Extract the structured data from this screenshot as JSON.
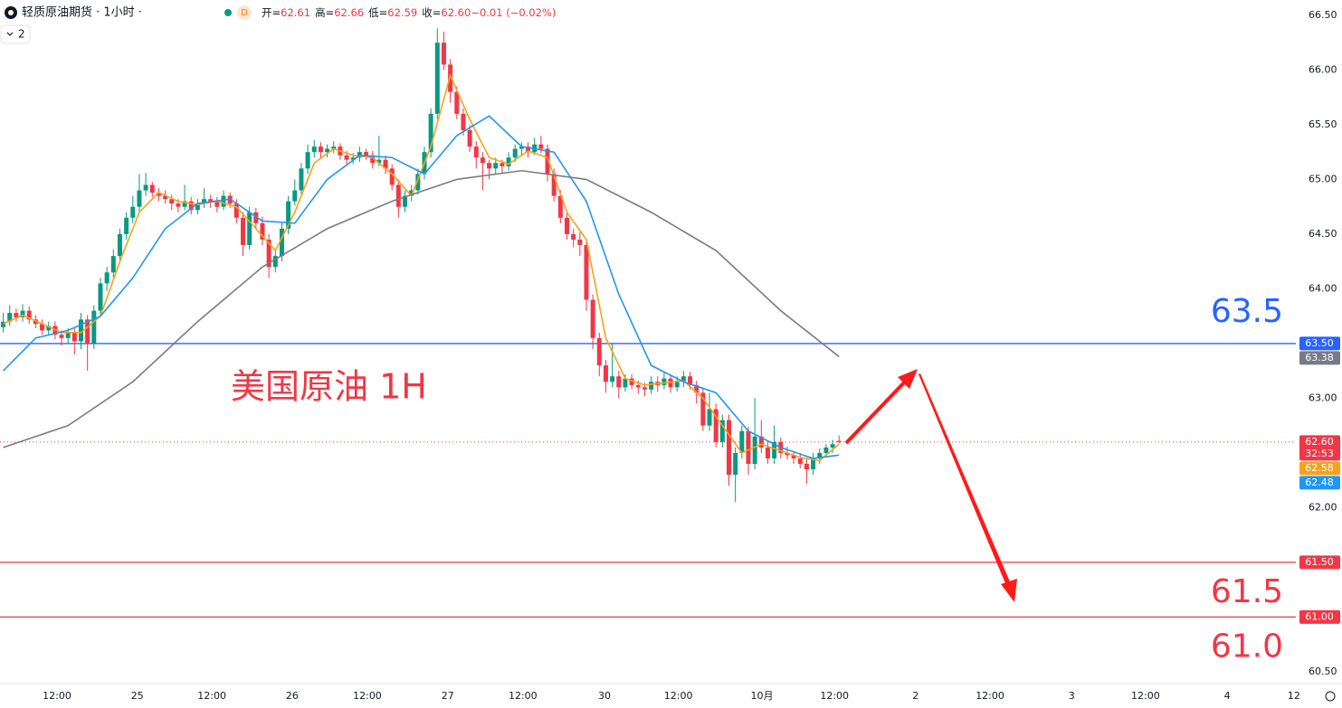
{
  "chart_data": {
    "type": "candlestick",
    "legend": {
      "name": "轻质原油期货 · 1小时 ·",
      "interval": "D",
      "fields": [
        [
          "开=",
          "62.61"
        ],
        [
          "高=",
          "62.66"
        ],
        [
          "低=",
          "62.59"
        ],
        [
          "收=",
          "62.60"
        ],
        [
          "",
          "−0.01 (−0.02%)"
        ]
      ],
      "indicator_count": 2
    },
    "title": "美国原油 1H",
    "up_color": "#089981",
    "down_color": "#f23645",
    "xlim": [
      -0.5,
      199.5
    ],
    "xticks": [
      {
        "value": 8.3,
        "label": "12:00"
      },
      {
        "value": 20.7,
        "label": "25"
      },
      {
        "value": 32.2,
        "label": "12:00"
      },
      {
        "value": 44.6,
        "label": "26"
      },
      {
        "value": 56.2,
        "label": "12:00"
      },
      {
        "value": 68.6,
        "label": "27"
      },
      {
        "value": 80.2,
        "label": "12:00"
      },
      {
        "value": 92.8,
        "label": "30"
      },
      {
        "value": 104.2,
        "label": "12:00"
      },
      {
        "value": 117.1,
        "label": "10月"
      },
      {
        "value": 128.3,
        "label": "12:00"
      },
      {
        "value": 140.8,
        "label": "2"
      },
      {
        "value": 152.3,
        "label": "12:00"
      },
      {
        "value": 164.9,
        "label": "3"
      },
      {
        "value": 176.3,
        "label": "12:00"
      },
      {
        "value": 188.9,
        "label": "4"
      },
      {
        "value": 199.2,
        "label": "12"
      }
    ],
    "ylim": [
      60.4,
      66.64
    ],
    "yticks": [
      {
        "value": 66.5,
        "label": "66.50"
      },
      {
        "value": 66,
        "label": "66.00"
      },
      {
        "value": 65.5,
        "label": "65.50"
      },
      {
        "value": 65,
        "label": "65.00"
      },
      {
        "value": 64.5,
        "label": "64.50"
      },
      {
        "value": 64,
        "label": "64.00"
      },
      {
        "value": 63,
        "label": "63.00"
      },
      {
        "value": 62,
        "label": "62.00"
      },
      {
        "value": 60.5,
        "label": "60.50"
      }
    ],
    "grid": false,
    "candles": [
      [
        63.65,
        63.78,
        63.6,
        63.7
      ],
      [
        63.7,
        63.85,
        63.66,
        63.78
      ],
      [
        63.78,
        63.82,
        63.7,
        63.74
      ],
      [
        63.74,
        63.86,
        63.7,
        63.8
      ],
      [
        63.8,
        63.84,
        63.68,
        63.72
      ],
      [
        63.72,
        63.76,
        63.64,
        63.68
      ],
      [
        63.68,
        63.72,
        63.58,
        63.62
      ],
      [
        63.62,
        63.7,
        63.58,
        63.66
      ],
      [
        63.66,
        63.7,
        63.54,
        63.58
      ],
      [
        63.58,
        63.62,
        63.48,
        63.55
      ],
      [
        63.55,
        63.64,
        63.5,
        63.6
      ],
      [
        63.6,
        63.64,
        63.4,
        63.52
      ],
      [
        63.52,
        63.78,
        63.45,
        63.72
      ],
      [
        63.72,
        63.76,
        63.25,
        63.5
      ],
      [
        63.5,
        63.85,
        63.45,
        63.8
      ],
      [
        63.8,
        64.1,
        63.76,
        64.05
      ],
      [
        64.05,
        64.2,
        63.98,
        64.15
      ],
      [
        64.15,
        64.36,
        64.1,
        64.3
      ],
      [
        64.3,
        64.55,
        64.25,
        64.5
      ],
      [
        64.5,
        64.7,
        64.45,
        64.65
      ],
      [
        64.65,
        64.85,
        64.6,
        64.75
      ],
      [
        64.75,
        65.05,
        64.7,
        64.9
      ],
      [
        64.9,
        65.06,
        64.85,
        64.95
      ],
      [
        64.95,
        64.98,
        64.84,
        64.88
      ],
      [
        64.88,
        64.92,
        64.8,
        64.85
      ],
      [
        64.85,
        64.9,
        64.78,
        64.82
      ],
      [
        64.82,
        64.86,
        64.72,
        64.78
      ],
      [
        64.78,
        64.82,
        64.7,
        64.75
      ],
      [
        64.75,
        64.95,
        64.72,
        64.8
      ],
      [
        64.8,
        64.84,
        64.68,
        64.72
      ],
      [
        64.72,
        64.82,
        64.68,
        64.78
      ],
      [
        64.78,
        64.92,
        64.74,
        64.82
      ],
      [
        64.82,
        64.86,
        64.74,
        64.8
      ],
      [
        64.8,
        64.84,
        64.7,
        64.75
      ],
      [
        64.75,
        64.9,
        64.72,
        64.85
      ],
      [
        64.85,
        64.88,
        64.74,
        64.78
      ],
      [
        64.78,
        64.82,
        64.6,
        64.65
      ],
      [
        64.65,
        64.7,
        64.3,
        64.4
      ],
      [
        64.4,
        64.75,
        64.36,
        64.7
      ],
      [
        64.7,
        64.74,
        64.55,
        64.6
      ],
      [
        64.6,
        64.66,
        64.4,
        64.45
      ],
      [
        64.45,
        64.5,
        64.1,
        64.2
      ],
      [
        64.2,
        64.35,
        64.15,
        64.3
      ],
      [
        64.3,
        64.6,
        64.25,
        64.55
      ],
      [
        64.55,
        64.85,
        64.5,
        64.8
      ],
      [
        64.8,
        65.0,
        64.76,
        64.9
      ],
      [
        64.9,
        65.15,
        64.86,
        65.1
      ],
      [
        65.1,
        65.32,
        65.05,
        65.25
      ],
      [
        65.25,
        65.36,
        65.2,
        65.3
      ],
      [
        65.3,
        65.34,
        65.2,
        65.25
      ],
      [
        65.25,
        65.32,
        65.2,
        65.28
      ],
      [
        65.28,
        65.35,
        65.24,
        65.3
      ],
      [
        65.3,
        65.33,
        65.18,
        65.22
      ],
      [
        65.22,
        65.26,
        65.14,
        65.18
      ],
      [
        65.18,
        65.24,
        65.14,
        65.2
      ],
      [
        65.2,
        65.3,
        65.16,
        65.25
      ],
      [
        65.25,
        65.28,
        65.18,
        65.22
      ],
      [
        65.22,
        65.26,
        65.1,
        65.15
      ],
      [
        65.15,
        65.4,
        65.12,
        65.18
      ],
      [
        65.18,
        65.22,
        65.05,
        65.1
      ],
      [
        65.1,
        65.14,
        64.9,
        64.95
      ],
      [
        64.95,
        65.0,
        64.65,
        64.75
      ],
      [
        64.75,
        64.9,
        64.7,
        64.85
      ],
      [
        64.85,
        64.95,
        64.8,
        64.9
      ],
      [
        64.9,
        65.1,
        64.86,
        65.05
      ],
      [
        65.05,
        65.3,
        65.0,
        65.25
      ],
      [
        65.25,
        65.65,
        65.2,
        65.6
      ],
      [
        65.6,
        66.38,
        65.55,
        66.25
      ],
      [
        66.25,
        66.35,
        66.0,
        66.05
      ],
      [
        66.05,
        66.1,
        65.7,
        65.8
      ],
      [
        65.8,
        65.85,
        65.55,
        65.6
      ],
      [
        65.6,
        65.65,
        65.4,
        65.45
      ],
      [
        65.45,
        65.5,
        65.25,
        65.3
      ],
      [
        65.3,
        65.35,
        65.1,
        65.2
      ],
      [
        65.2,
        65.25,
        64.9,
        65.15
      ],
      [
        65.15,
        65.18,
        65.0,
        65.1
      ],
      [
        65.1,
        65.2,
        65.05,
        65.15
      ],
      [
        65.15,
        65.18,
        65.05,
        65.12
      ],
      [
        65.12,
        65.25,
        65.08,
        65.2
      ],
      [
        65.2,
        65.32,
        65.16,
        65.28
      ],
      [
        65.28,
        65.34,
        65.22,
        65.3
      ],
      [
        65.3,
        65.34,
        65.2,
        65.25
      ],
      [
        65.25,
        65.38,
        65.22,
        65.32
      ],
      [
        65.32,
        65.4,
        65.24,
        65.28
      ],
      [
        65.28,
        65.32,
        64.98,
        65.05
      ],
      [
        65.05,
        65.1,
        64.8,
        64.85
      ],
      [
        64.85,
        64.9,
        64.6,
        64.65
      ],
      [
        64.65,
        64.7,
        64.45,
        64.5
      ],
      [
        64.5,
        64.55,
        64.38,
        64.45
      ],
      [
        64.45,
        64.52,
        64.3,
        64.4
      ],
      [
        64.4,
        64.45,
        63.8,
        63.9
      ],
      [
        63.9,
        63.95,
        63.45,
        63.55
      ],
      [
        63.55,
        63.6,
        63.2,
        63.3
      ],
      [
        63.3,
        63.35,
        63.05,
        63.15
      ],
      [
        63.15,
        63.5,
        63.1,
        63.2
      ],
      [
        63.2,
        63.25,
        63.0,
        63.1
      ],
      [
        63.1,
        63.22,
        63.06,
        63.18
      ],
      [
        63.18,
        63.22,
        63.08,
        63.12
      ],
      [
        63.12,
        63.16,
        63.04,
        63.1
      ],
      [
        63.1,
        63.14,
        63.02,
        63.08
      ],
      [
        63.08,
        63.2,
        63.04,
        63.15
      ],
      [
        63.15,
        63.2,
        63.06,
        63.12
      ],
      [
        63.12,
        63.24,
        63.08,
        63.18
      ],
      [
        63.18,
        63.22,
        63.05,
        63.1
      ],
      [
        63.1,
        63.2,
        63.06,
        63.15
      ],
      [
        63.15,
        63.25,
        63.1,
        63.2
      ],
      [
        63.2,
        63.24,
        63.08,
        63.12
      ],
      [
        63.12,
        63.16,
        62.95,
        63.05
      ],
      [
        63.05,
        63.1,
        62.7,
        62.75
      ],
      [
        62.75,
        63.05,
        62.7,
        62.9
      ],
      [
        62.9,
        62.95,
        62.55,
        62.6
      ],
      [
        62.6,
        62.85,
        62.55,
        62.8
      ],
      [
        62.8,
        62.85,
        62.2,
        62.3
      ],
      [
        62.3,
        62.55,
        62.05,
        62.5
      ],
      [
        62.5,
        62.75,
        62.45,
        62.7
      ],
      [
        62.7,
        62.74,
        62.3,
        62.4
      ],
      [
        62.4,
        63.0,
        62.35,
        62.65
      ],
      [
        62.65,
        62.8,
        62.5,
        62.55
      ],
      [
        62.55,
        62.6,
        62.4,
        62.45
      ],
      [
        62.45,
        62.75,
        62.4,
        62.6
      ],
      [
        62.6,
        62.64,
        62.45,
        62.5
      ],
      [
        62.5,
        62.56,
        62.44,
        62.48
      ],
      [
        62.48,
        62.52,
        62.4,
        62.45
      ],
      [
        62.45,
        62.5,
        62.36,
        62.4
      ],
      [
        62.4,
        62.45,
        62.22,
        62.35
      ],
      [
        62.35,
        62.5,
        62.3,
        62.45
      ],
      [
        62.45,
        62.54,
        62.4,
        62.5
      ],
      [
        62.5,
        62.58,
        62.46,
        62.55
      ],
      [
        62.55,
        62.62,
        62.5,
        62.58
      ],
      [
        62.61,
        62.66,
        62.59,
        62.6
      ]
    ],
    "series": [
      {
        "color": "#f7a21b",
        "x": [
          0,
          3,
          6,
          9,
          12,
          15,
          18,
          21,
          24,
          27,
          30,
          33,
          36,
          39,
          42,
          45,
          48,
          51,
          54,
          57,
          60,
          63,
          66,
          69,
          72,
          75,
          78,
          81,
          84,
          87,
          90,
          93,
          96,
          99,
          102,
          105,
          108,
          111,
          114,
          117,
          120,
          123,
          126,
          129
        ],
        "values": [
          63.68,
          63.76,
          63.68,
          63.6,
          63.6,
          63.75,
          64.25,
          64.7,
          64.88,
          64.8,
          64.77,
          64.8,
          64.75,
          64.55,
          64.35,
          64.7,
          65.15,
          65.28,
          65.22,
          65.2,
          65.05,
          64.85,
          65.3,
          65.95,
          65.55,
          65.2,
          65.14,
          65.26,
          65.2,
          64.7,
          64.45,
          63.55,
          63.18,
          63.12,
          63.14,
          63.16,
          63.0,
          62.75,
          62.5,
          62.58,
          62.52,
          62.46,
          62.43,
          62.58
        ]
      },
      {
        "color": "#2196f3",
        "x": [
          0,
          5,
          10,
          15,
          20,
          25,
          30,
          35,
          40,
          45,
          50,
          55,
          60,
          65,
          70,
          75,
          80,
          85,
          90,
          95,
          100,
          105,
          110,
          115,
          120,
          125,
          129
        ],
        "values": [
          63.25,
          63.55,
          63.62,
          63.75,
          64.1,
          64.55,
          64.78,
          64.82,
          64.62,
          64.6,
          65.0,
          65.22,
          65.2,
          65.05,
          65.4,
          65.58,
          65.3,
          65.25,
          64.8,
          63.95,
          63.3,
          63.15,
          63.05,
          62.7,
          62.55,
          62.45,
          62.48
        ]
      },
      {
        "color": "#787b86",
        "x": [
          0,
          10,
          20,
          30,
          40,
          50,
          60,
          70,
          80,
          90,
          100,
          110,
          120,
          129
        ],
        "values": [
          62.55,
          62.75,
          63.15,
          63.7,
          64.2,
          64.55,
          64.8,
          65.0,
          65.08,
          65.0,
          64.7,
          64.35,
          63.8,
          63.38
        ]
      }
    ],
    "current_price": {
      "value": 62.6,
      "label": "62.60",
      "countdown": "32:53",
      "color": "#f23645"
    },
    "price_labels": [
      {
        "value": 62.58,
        "label": "62.58",
        "color": "#f7a21b"
      },
      {
        "value": 62.48,
        "label": "62.48",
        "color": "#2196f3"
      },
      {
        "value": 63.38,
        "label": "63.38",
        "color": "#787b86"
      }
    ],
    "levels": [
      {
        "value": 63.5,
        "badge": "63.50",
        "label": "63.5",
        "color": "#2962ff"
      },
      {
        "value": 61.5,
        "badge": "61.50",
        "label": "61.5",
        "color": "#f23645"
      },
      {
        "value": 61,
        "badge": "61.00",
        "label": "61.0",
        "color": "#f23645"
      }
    ]
  }
}
